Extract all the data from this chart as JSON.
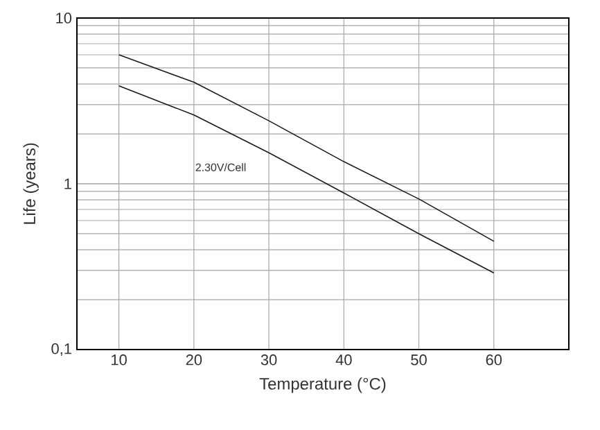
{
  "chart_data": {
    "type": "line",
    "xlabel": "Temperature (°C)",
    "ylabel": "Life (years)",
    "x": [
      10,
      20,
      30,
      40,
      50,
      60
    ],
    "series": [
      {
        "color": "#1a1a1a",
        "values": [
          6.0,
          4.1,
          2.4,
          1.36,
          0.81,
          0.45
        ]
      },
      {
        "color": "#1a1a1a",
        "values": [
          3.9,
          2.6,
          1.54,
          0.88,
          0.5,
          0.29
        ]
      }
    ],
    "xlim": [
      4.4,
      70
    ],
    "ylim": [
      0.1,
      10
    ],
    "xticks": [
      10,
      20,
      30,
      40,
      50,
      60
    ],
    "yticks": [
      {
        "value": 0.1,
        "label": "0,1"
      },
      1,
      10
    ],
    "log": "y",
    "grid": true,
    "marker": "none",
    "line_style": "solid",
    "annotations": [
      "2.30V/Cell"
    ]
  }
}
